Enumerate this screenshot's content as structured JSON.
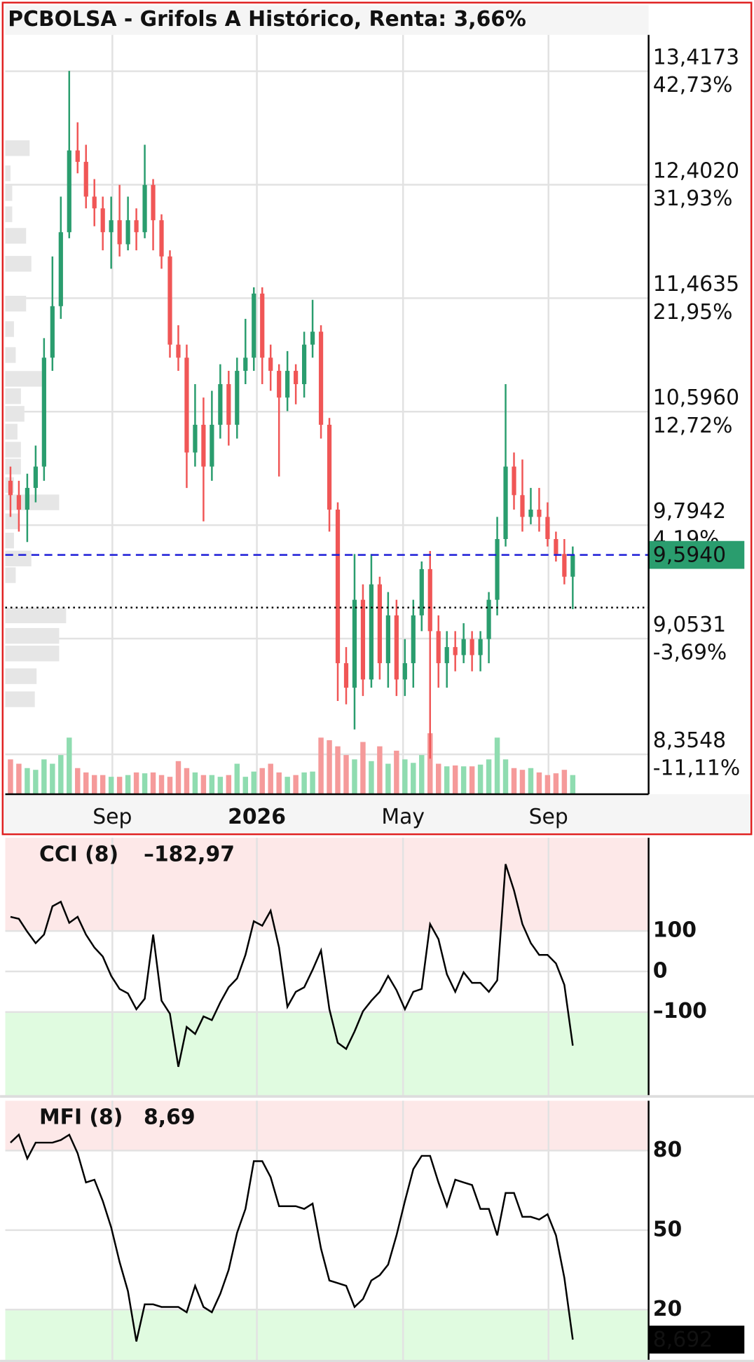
{
  "chart_data": [
    {
      "type": "candlestick",
      "title": "PCBOLSA - Grifols A Histórico, Renta: 3,66%",
      "open": [
        10.1,
        10.0,
        9.9,
        10.05,
        10.2,
        11.0,
        11.4,
        12.0,
        12.7,
        12.6,
        12.3,
        12.2,
        12.0,
        12.1,
        11.9,
        12.1,
        12.0,
        12.4,
        12.1,
        11.8,
        11.1,
        11.0,
        10.3,
        10.5,
        10.2,
        10.5,
        10.8,
        10.5,
        10.9,
        11.0,
        11.5,
        11.0,
        10.9,
        10.7,
        10.9,
        10.8,
        11.1,
        11.2,
        10.5,
        9.9,
        8.9,
        8.75,
        9.3,
        8.8,
        9.4,
        8.9,
        9.2,
        8.8,
        8.9,
        9.2,
        9.5,
        9.1,
        8.9,
        9.0,
        8.95,
        9.05,
        8.95,
        9.05,
        9.3,
        9.7,
        10.2,
        10.0,
        9.85,
        9.9,
        9.85,
        9.7,
        9.6,
        9.45
      ],
      "high": [
        10.2,
        10.1,
        10.15,
        10.35,
        11.15,
        11.8,
        12.3,
        13.42,
        12.95,
        12.75,
        12.45,
        12.3,
        12.3,
        12.4,
        12.3,
        12.2,
        12.75,
        12.45,
        12.15,
        11.85,
        11.25,
        11.1,
        10.8,
        10.7,
        10.75,
        10.95,
        10.9,
        11.0,
        11.3,
        11.55,
        11.55,
        11.1,
        10.95,
        11.05,
        10.95,
        11.2,
        11.45,
        11.25,
        10.55,
        9.95,
        9.0,
        9.6,
        9.4,
        9.6,
        9.45,
        9.35,
        9.3,
        9.05,
        9.3,
        9.55,
        9.62,
        9.2,
        9.1,
        9.1,
        9.15,
        9.1,
        9.1,
        9.35,
        9.85,
        10.8,
        10.3,
        10.25,
        10.05,
        10.05,
        9.95,
        9.75,
        9.7,
        9.65
      ],
      "low": [
        9.85,
        9.75,
        9.68,
        9.95,
        10.1,
        10.9,
        11.3,
        11.95,
        12.5,
        12.2,
        12.05,
        11.85,
        11.7,
        11.8,
        11.85,
        11.85,
        11.95,
        11.85,
        11.7,
        11.0,
        10.9,
        10.05,
        10.2,
        9.82,
        10.1,
        10.4,
        10.35,
        10.4,
        10.8,
        10.9,
        10.8,
        10.75,
        10.13,
        10.6,
        10.65,
        10.7,
        11.0,
        10.4,
        9.75,
        8.67,
        8.65,
        8.5,
        8.7,
        8.75,
        8.8,
        8.75,
        8.7,
        8.7,
        8.75,
        9.1,
        8.33,
        8.75,
        8.75,
        8.85,
        8.9,
        8.85,
        8.85,
        8.9,
        9.2,
        9.65,
        9.9,
        9.75,
        9.8,
        9.75,
        9.65,
        9.55,
        9.4,
        9.24
      ],
      "close": [
        10.0,
        9.9,
        10.05,
        10.2,
        11.0,
        11.4,
        12.0,
        12.7,
        12.6,
        12.3,
        12.2,
        12.0,
        12.1,
        11.9,
        12.1,
        12.0,
        12.4,
        12.1,
        11.8,
        11.1,
        11.0,
        10.3,
        10.5,
        10.2,
        10.5,
        10.8,
        10.5,
        10.9,
        11.0,
        11.5,
        11.0,
        10.9,
        10.7,
        10.9,
        10.8,
        11.1,
        11.2,
        10.5,
        9.9,
        8.9,
        8.75,
        9.3,
        8.8,
        9.4,
        8.9,
        9.2,
        8.8,
        8.9,
        9.2,
        9.5,
        9.1,
        8.9,
        9.0,
        8.95,
        9.05,
        8.95,
        9.05,
        9.3,
        9.7,
        10.2,
        10.0,
        9.85,
        9.9,
        9.85,
        9.7,
        9.6,
        9.45,
        9.594
      ],
      "volume": [
        40,
        35,
        30,
        28,
        40,
        35,
        45,
        65,
        30,
        25,
        22,
        22,
        20,
        20,
        22,
        25,
        24,
        25,
        22,
        20,
        38,
        30,
        25,
        22,
        22,
        20,
        22,
        35,
        20,
        26,
        30,
        35,
        25,
        20,
        22,
        25,
        26,
        65,
        62,
        55,
        45,
        40,
        60,
        38,
        55,
        35,
        50,
        40,
        36,
        45,
        70,
        35,
        32,
        33,
        32,
        32,
        34,
        40,
        65,
        40,
        30,
        28,
        30,
        25,
        22,
        24,
        28,
        22
      ],
      "volume_ylim": [
        0,
        100
      ],
      "volume_profile": {
        "prices": [
          12.72,
          12.5,
          12.33,
          12.15,
          11.97,
          11.74,
          11.42,
          11.22,
          11.02,
          10.84,
          10.71,
          10.58,
          10.45,
          10.32,
          10.2,
          10.07,
          9.95,
          9.82,
          9.69,
          9.57,
          9.46,
          9.2,
          9.07,
          8.96,
          8.82,
          8.68
        ],
        "values": [
          28,
          6,
          8,
          8,
          24,
          30,
          24,
          10,
          12,
          42,
          18,
          22,
          14,
          18,
          18,
          10,
          62,
          16,
          10,
          30,
          12,
          70,
          62,
          62,
          36,
          34
        ]
      },
      "volume_profile_xlim": [
        0,
        740
      ],
      "colors": {
        "up": "#2a9d6e",
        "down": "#f05656",
        "volume_up": "#8fdcb0",
        "volume_down": "#f59a9a",
        "profile": "#e6e6e6",
        "last_price": "#2a9d6e",
        "last_price_line": "#1d1dd8",
        "reference_line": "#000000"
      },
      "log_scale": true,
      "grid": true,
      "ylim": [
        8.127,
        13.76
      ],
      "yticks": [
        {
          "value": 13.4173,
          "label": "13,4173"
        },
        {
          "value": 12.402,
          "label": "12,4020"
        },
        {
          "value": 11.4635,
          "label": "11,4635"
        },
        {
          "value": 10.596,
          "label": "10,5960"
        },
        {
          "value": 9.7942,
          "label": "9,7942"
        },
        {
          "value": 9.0531,
          "label": "9,0531"
        },
        {
          "value": 8.3548,
          "label": "8,3548"
        }
      ],
      "ytick_percent_labels": [
        "42,73%",
        "31,93%",
        "21,95%",
        "12,72%",
        "4,19%",
        "-3,69%",
        "-11,11%"
      ],
      "xlim": [
        -0.62,
        76.04
      ],
      "xticks": [
        {
          "value": 12.14,
          "label": "Sep"
        },
        {
          "value": 29.36,
          "label": "2026",
          "bold": true
        },
        {
          "value": 46.78,
          "label": "May"
        },
        {
          "value": 64.11,
          "label": "Sep"
        }
      ],
      "last_price": 9.594,
      "last_price_label": "9,5940",
      "reference_price": 9.25
    },
    {
      "type": "line",
      "name": "CCI (8)",
      "value_label": "–182,97",
      "color": "#000000",
      "values": [
        135,
        130,
        98,
        70,
        91,
        161,
        172,
        120,
        135,
        91,
        59,
        37,
        -11,
        -43,
        -54,
        -93,
        -67,
        91,
        -72,
        -104,
        -235,
        -137,
        -154,
        -111,
        -120,
        -76,
        -39,
        -17,
        41,
        124,
        113,
        150,
        59,
        -87,
        -50,
        -39,
        4,
        52,
        -93,
        -176,
        -191,
        -148,
        -98,
        -72,
        -50,
        -11,
        -46,
        -93,
        -50,
        -43,
        117,
        80,
        -7,
        -50,
        -2,
        -28,
        -28,
        -50,
        -22,
        265,
        200,
        117,
        70,
        41,
        41,
        20,
        -33,
        -182.97
      ],
      "ylim": [
        -306,
        330
      ],
      "yticks": [
        100,
        0,
        {
          "value": -100,
          "label": "–100"
        }
      ],
      "ytick_colors": [
        "#e00000",
        "#000000",
        "#1a8a1a"
      ],
      "bands": {
        "upper": 100,
        "lower": -100,
        "upper_color": "#fde8e8",
        "lower_color": "#e0fbe0"
      },
      "grid": true
    },
    {
      "type": "line",
      "name": "MFI (8)",
      "value_label": "8,69",
      "color": "#000000",
      "values": [
        83,
        86,
        77,
        83,
        83,
        83,
        84,
        86,
        79,
        68,
        69,
        61,
        51,
        38,
        27,
        8,
        22,
        22,
        21,
        21,
        21,
        19,
        29,
        21,
        19,
        26,
        35,
        49,
        58,
        76,
        76,
        70,
        59,
        59,
        59,
        58,
        60,
        43,
        31,
        30,
        29,
        21,
        24,
        31,
        33,
        37,
        48,
        61,
        73,
        78,
        78,
        68,
        59,
        69,
        68,
        67,
        58,
        58,
        48,
        64,
        64,
        55,
        55,
        54,
        56,
        48,
        32,
        8.692
      ],
      "last_value_label": "8,692",
      "ylim": [
        0.9,
        98.8
      ],
      "yticks": [
        80,
        50,
        20
      ],
      "ytick_colors": [
        "#e00000",
        "#000000",
        "#1a8a1a"
      ],
      "bands": {
        "upper": 80,
        "lower": 20,
        "upper_color": "#fde8e8",
        "lower_color": "#e0fbe0"
      },
      "grid": true
    }
  ]
}
